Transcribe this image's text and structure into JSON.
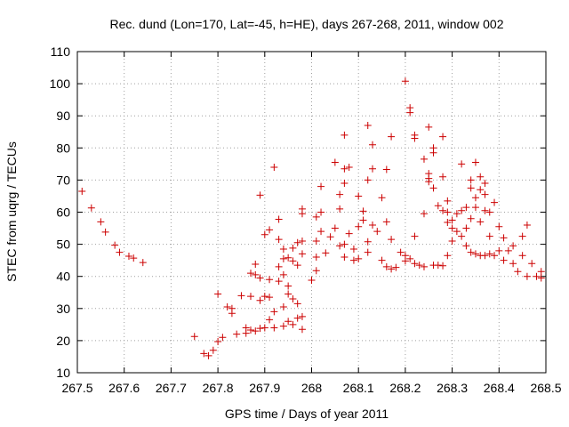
{
  "chart_data": {
    "type": "scatter",
    "title": "Rec. dund (Lon=170, Lat=-45, h=HE), days 267-268, 2011, window 002",
    "xlabel": "GPS time / Days of year 2011",
    "ylabel": "STEC from uqrg / TECUs",
    "xlim": [
      267.5,
      268.5
    ],
    "ylim": [
      10,
      110
    ],
    "xticks": [
      "267.5",
      "267.6",
      "267.7",
      "267.8",
      "267.9",
      "268",
      "268.1",
      "268.2",
      "268.3",
      "268.4",
      "268.5"
    ],
    "yticks": [
      "10",
      "20",
      "30",
      "40",
      "50",
      "60",
      "70",
      "80",
      "90",
      "100",
      "110"
    ],
    "grid": true,
    "marker": "+",
    "color": "#cc0000",
    "points": [
      [
        267.51,
        66.5
      ],
      [
        267.53,
        61.3
      ],
      [
        267.55,
        57.0
      ],
      [
        267.56,
        53.8
      ],
      [
        267.58,
        49.7
      ],
      [
        267.59,
        47.5
      ],
      [
        267.61,
        46.3
      ],
      [
        267.62,
        45.7
      ],
      [
        267.64,
        44.3
      ],
      [
        267.75,
        21.3
      ],
      [
        267.77,
        16.0
      ],
      [
        267.78,
        15.3
      ],
      [
        267.79,
        17.0
      ],
      [
        267.8,
        19.7
      ],
      [
        267.8,
        34.5
      ],
      [
        267.81,
        21.0
      ],
      [
        267.82,
        30.5
      ],
      [
        267.83,
        28.5
      ],
      [
        267.83,
        30.0
      ],
      [
        267.84,
        22.0
      ],
      [
        267.85,
        34.0
      ],
      [
        267.86,
        22.3
      ],
      [
        267.86,
        24.0
      ],
      [
        267.87,
        23.3
      ],
      [
        267.87,
        33.8
      ],
      [
        267.87,
        41.0
      ],
      [
        267.88,
        40.5
      ],
      [
        267.88,
        43.8
      ],
      [
        267.88,
        23.0
      ],
      [
        267.89,
        23.8
      ],
      [
        267.89,
        32.5
      ],
      [
        267.89,
        39.5
      ],
      [
        267.89,
        65.3
      ],
      [
        267.9,
        24.0
      ],
      [
        267.9,
        33.8
      ],
      [
        267.9,
        53.0
      ],
      [
        267.91,
        33.5
      ],
      [
        267.91,
        54.5
      ],
      [
        267.91,
        26.5
      ],
      [
        267.91,
        39.0
      ],
      [
        267.92,
        24.0
      ],
      [
        267.92,
        29.0
      ],
      [
        267.92,
        74.0
      ],
      [
        267.93,
        38.5
      ],
      [
        267.93,
        43.0
      ],
      [
        267.93,
        51.5
      ],
      [
        267.93,
        57.8
      ],
      [
        267.94,
        24.5
      ],
      [
        267.94,
        30.5
      ],
      [
        267.94,
        40.5
      ],
      [
        267.94,
        45.5
      ],
      [
        267.94,
        48.5
      ],
      [
        267.95,
        26.0
      ],
      [
        267.95,
        34.5
      ],
      [
        267.95,
        37.0
      ],
      [
        267.95,
        45.8
      ],
      [
        267.96,
        25.0
      ],
      [
        267.96,
        33.0
      ],
      [
        267.96,
        44.8
      ],
      [
        267.96,
        48.8
      ],
      [
        267.97,
        31.5
      ],
      [
        267.97,
        50.5
      ],
      [
        267.97,
        43.5
      ],
      [
        267.97,
        27.0
      ],
      [
        267.98,
        23.5
      ],
      [
        267.98,
        27.5
      ],
      [
        267.98,
        47.0
      ],
      [
        267.98,
        51.0
      ],
      [
        267.98,
        59.5
      ],
      [
        267.98,
        61.0
      ],
      [
        268.0,
        38.8
      ],
      [
        268.01,
        41.8
      ],
      [
        268.01,
        46.0
      ],
      [
        268.01,
        51.0
      ],
      [
        268.01,
        58.5
      ],
      [
        268.02,
        68.0
      ],
      [
        268.02,
        54.0
      ],
      [
        268.02,
        60.0
      ],
      [
        268.03,
        47.3
      ],
      [
        268.04,
        52.3
      ],
      [
        268.05,
        55.0
      ],
      [
        268.05,
        75.5
      ],
      [
        268.06,
        49.5
      ],
      [
        268.06,
        65.5
      ],
      [
        268.06,
        61.0
      ],
      [
        268.07,
        46.0
      ],
      [
        268.07,
        50.0
      ],
      [
        268.07,
        69.0
      ],
      [
        268.07,
        73.5
      ],
      [
        268.07,
        84.0
      ],
      [
        268.08,
        53.3
      ],
      [
        268.08,
        74.0
      ],
      [
        268.09,
        45.0
      ],
      [
        268.09,
        48.5
      ],
      [
        268.1,
        45.5
      ],
      [
        268.1,
        55.5
      ],
      [
        268.1,
        65.0
      ],
      [
        268.11,
        57.5
      ],
      [
        268.11,
        60.3
      ],
      [
        268.12,
        47.5
      ],
      [
        268.12,
        50.8
      ],
      [
        268.12,
        70.0
      ],
      [
        268.12,
        87.0
      ],
      [
        268.13,
        56.0
      ],
      [
        268.13,
        73.5
      ],
      [
        268.13,
        81.0
      ],
      [
        268.14,
        54.0
      ],
      [
        268.15,
        45.0
      ],
      [
        268.15,
        64.5
      ],
      [
        268.16,
        43.0
      ],
      [
        268.16,
        57.0
      ],
      [
        268.16,
        73.3
      ],
      [
        268.17,
        42.3
      ],
      [
        268.17,
        51.5
      ],
      [
        268.17,
        83.5
      ],
      [
        268.18,
        42.8
      ],
      [
        268.19,
        47.5
      ],
      [
        268.2,
        44.8
      ],
      [
        268.2,
        46.5
      ],
      [
        268.2,
        100.8
      ],
      [
        268.21,
        45.5
      ],
      [
        268.21,
        91.0
      ],
      [
        268.21,
        92.5
      ],
      [
        268.22,
        44.0
      ],
      [
        268.22,
        52.5
      ],
      [
        268.22,
        83.0
      ],
      [
        268.22,
        84.0
      ],
      [
        268.23,
        43.5
      ],
      [
        268.24,
        43.0
      ],
      [
        268.24,
        59.5
      ],
      [
        268.24,
        76.5
      ],
      [
        268.25,
        69.5
      ],
      [
        268.25,
        70.5
      ],
      [
        268.25,
        72.0
      ],
      [
        268.25,
        86.5
      ],
      [
        268.26,
        43.5
      ],
      [
        268.26,
        67.5
      ],
      [
        268.26,
        78.5
      ],
      [
        268.26,
        80.0
      ],
      [
        268.27,
        43.5
      ],
      [
        268.27,
        62.0
      ],
      [
        268.28,
        43.3
      ],
      [
        268.28,
        60.5
      ],
      [
        268.28,
        71.0
      ],
      [
        268.28,
        83.5
      ],
      [
        268.29,
        46.5
      ],
      [
        268.29,
        56.8
      ],
      [
        268.29,
        63.5
      ],
      [
        268.29,
        60.0
      ],
      [
        268.3,
        51.0
      ],
      [
        268.3,
        55.0
      ],
      [
        268.3,
        57.5
      ],
      [
        268.31,
        54.0
      ],
      [
        268.31,
        59.5
      ],
      [
        268.32,
        52.5
      ],
      [
        268.32,
        60.5
      ],
      [
        268.32,
        75.0
      ],
      [
        268.33,
        49.5
      ],
      [
        268.33,
        55.0
      ],
      [
        268.33,
        61.5
      ],
      [
        268.34,
        47.5
      ],
      [
        268.34,
        58.0
      ],
      [
        268.34,
        67.5
      ],
      [
        268.34,
        70.0
      ],
      [
        268.35,
        47.0
      ],
      [
        268.35,
        61.5
      ],
      [
        268.35,
        64.5
      ],
      [
        268.35,
        75.5
      ],
      [
        268.36,
        46.5
      ],
      [
        268.36,
        57.0
      ],
      [
        268.36,
        67.0
      ],
      [
        268.36,
        71.0
      ],
      [
        268.37,
        46.5
      ],
      [
        268.37,
        60.5
      ],
      [
        268.37,
        65.5
      ],
      [
        268.37,
        69.0
      ],
      [
        268.38,
        47.0
      ],
      [
        268.38,
        52.5
      ],
      [
        268.38,
        60.0
      ],
      [
        268.39,
        46.5
      ],
      [
        268.39,
        63.0
      ],
      [
        268.4,
        48.0
      ],
      [
        268.4,
        55.5
      ],
      [
        268.41,
        45.0
      ],
      [
        268.41,
        52.0
      ],
      [
        268.42,
        48.0
      ],
      [
        268.43,
        44.0
      ],
      [
        268.43,
        49.5
      ],
      [
        268.44,
        41.5
      ],
      [
        268.45,
        46.5
      ],
      [
        268.45,
        52.5
      ],
      [
        268.46,
        40.0
      ],
      [
        268.46,
        56.0
      ],
      [
        268.47,
        44.0
      ],
      [
        268.48,
        40.0
      ],
      [
        268.49,
        41.5
      ],
      [
        268.49,
        39.5
      ]
    ]
  }
}
